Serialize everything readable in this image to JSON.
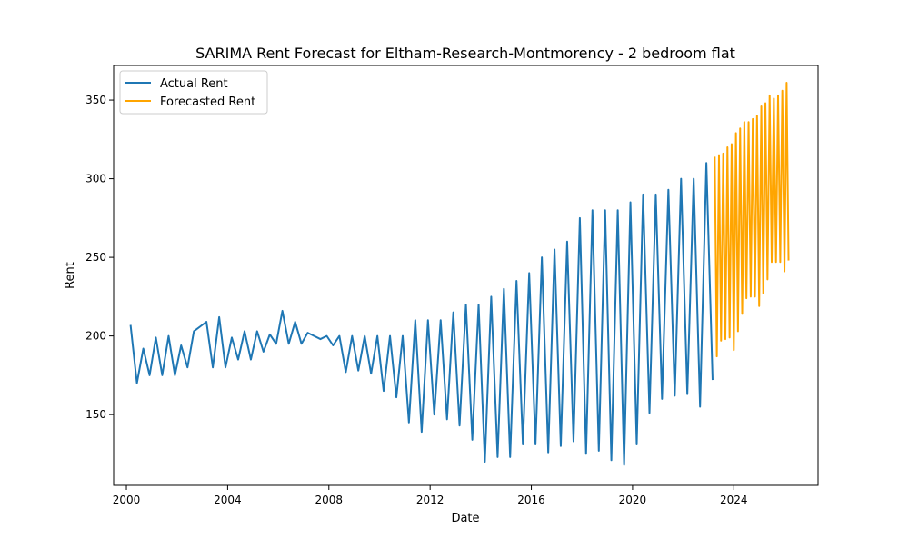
{
  "chart_data": {
    "type": "line",
    "title": "SARIMA Rent Forecast for Eltham-Research-Montmorency - 2 bedroom flat",
    "xlabel": "Date",
    "ylabel": "Rent",
    "xlim": [
      "1999-07-01",
      "2027-05-01"
    ],
    "ylim": [
      105,
      372
    ],
    "x_ticks": [
      "2000",
      "2004",
      "2008",
      "2012",
      "2016",
      "2020",
      "2024"
    ],
    "y_ticks": [
      150,
      200,
      250,
      300,
      350
    ],
    "grid": false,
    "legend": {
      "position": "top-left",
      "entries": [
        "Actual Rent",
        "Forecasted Rent"
      ]
    },
    "series": [
      {
        "name": "Actual Rent",
        "color": "#1f77b4",
        "x": [
          "2000-03-01",
          "2000-06-01",
          "2000-09-01",
          "2000-12-01",
          "2001-03-01",
          "2001-06-01",
          "2001-09-01",
          "2001-12-01",
          "2002-03-01",
          "2002-06-01",
          "2002-09-01",
          "2002-12-01",
          "2003-03-01",
          "2003-06-01",
          "2003-09-01",
          "2003-12-01",
          "2004-03-01",
          "2004-06-01",
          "2004-09-01",
          "2004-12-01",
          "2005-03-01",
          "2005-06-01",
          "2005-09-01",
          "2005-12-01",
          "2006-03-01",
          "2006-06-01",
          "2006-09-01",
          "2006-12-01",
          "2007-03-01",
          "2007-06-01",
          "2007-09-01",
          "2007-12-01",
          "2008-03-01",
          "2008-06-01",
          "2008-09-01",
          "2008-12-01",
          "2009-03-01",
          "2009-06-01",
          "2009-09-01",
          "2009-12-01",
          "2010-03-01",
          "2010-06-01",
          "2010-09-01",
          "2010-12-01",
          "2011-03-01",
          "2011-06-01",
          "2011-09-01",
          "2011-12-01",
          "2012-03-01",
          "2012-06-01",
          "2012-09-01",
          "2012-12-01",
          "2013-03-01",
          "2013-06-01",
          "2013-09-01",
          "2013-12-01",
          "2014-03-01",
          "2014-06-01",
          "2014-09-01",
          "2014-12-01",
          "2015-03-01",
          "2015-06-01",
          "2015-09-01",
          "2015-12-01",
          "2016-03-01",
          "2016-06-01",
          "2016-09-01",
          "2016-12-01",
          "2017-03-01",
          "2017-06-01",
          "2017-09-01",
          "2017-12-01",
          "2018-03-01",
          "2018-06-01",
          "2018-09-01",
          "2018-12-01",
          "2019-03-01",
          "2019-06-01",
          "2019-09-01",
          "2019-12-01",
          "2020-03-01",
          "2020-06-01",
          "2020-09-01",
          "2020-12-01",
          "2021-03-01",
          "2021-06-01",
          "2021-09-01",
          "2021-12-01",
          "2022-03-01",
          "2022-06-01",
          "2022-09-01",
          "2022-12-01",
          "2023-03-01"
        ],
        "values": [
          207,
          170,
          192,
          175,
          199,
          175,
          200,
          175,
          194,
          180,
          203,
          206,
          209,
          180,
          212,
          180,
          199,
          185,
          203,
          185,
          203,
          190,
          201,
          195,
          216,
          195,
          209,
          195,
          202,
          200,
          198,
          200,
          194,
          200,
          177,
          200,
          178,
          200,
          176,
          200,
          165,
          200,
          161,
          200,
          145,
          210,
          139,
          210,
          150,
          210,
          147,
          215,
          143,
          220,
          134,
          220,
          120,
          225,
          123,
          230,
          123,
          235,
          131,
          240,
          131,
          250,
          126,
          255,
          130,
          260,
          133,
          275,
          125,
          280,
          127,
          280,
          121,
          280,
          118,
          285,
          131,
          290,
          151,
          290,
          160,
          293,
          162,
          300,
          163,
          300,
          155,
          310,
          172
        ]
      },
      {
        "name": "Forecasted Rent",
        "color": "#ffa500",
        "x": [
          "2023-04-01",
          "2023-05-01",
          "2023-06-01",
          "2023-07-01",
          "2023-08-01",
          "2023-09-01",
          "2023-10-01",
          "2023-11-01",
          "2023-12-01",
          "2024-01-01",
          "2024-02-01",
          "2024-03-01",
          "2024-04-01",
          "2024-05-01",
          "2024-06-01",
          "2024-07-01",
          "2024-08-01",
          "2024-09-01",
          "2024-10-01",
          "2024-11-01",
          "2024-12-01",
          "2025-01-01",
          "2025-02-01",
          "2025-03-01",
          "2025-04-01",
          "2025-05-01",
          "2025-06-01",
          "2025-07-01",
          "2025-08-01",
          "2025-09-01",
          "2025-10-01",
          "2025-11-01",
          "2025-12-01",
          "2026-01-01",
          "2026-02-01",
          "2026-03-01"
        ],
        "values": [
          314,
          187,
          315,
          197,
          316,
          198,
          320,
          199,
          322,
          191,
          329,
          203,
          332,
          214,
          336,
          224,
          336,
          225,
          338,
          225,
          340,
          219,
          346,
          227,
          348,
          236,
          353,
          247,
          351,
          247,
          353,
          247,
          356,
          241,
          361,
          248
        ]
      }
    ]
  }
}
